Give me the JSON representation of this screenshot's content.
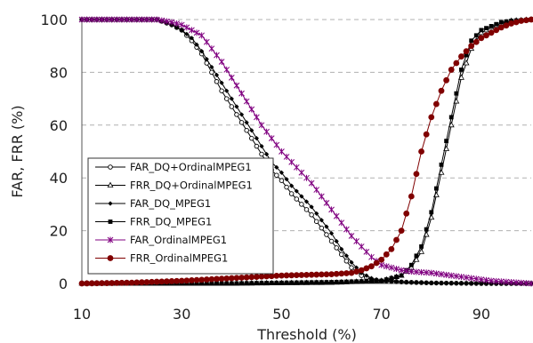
{
  "chart_data": {
    "type": "line",
    "title": "",
    "xlabel": "Threshold (%)",
    "ylabel": "FAR, FRR (%)",
    "xlim": [
      10,
      100
    ],
    "ylim": [
      0,
      100
    ],
    "x_ticks": [
      "10",
      "30",
      "50",
      "70",
      "90"
    ],
    "y_ticks": [
      "0",
      "20",
      "40",
      "60",
      "80",
      "100"
    ],
    "grid": "horizontal dashed",
    "legend_position": "left-center",
    "series": [
      {
        "name": "FAR_DQ+OrdinalMPEG1",
        "color": "#000000",
        "marker": "open-circle",
        "points": [
          [
            10,
            100
          ],
          [
            20,
            100
          ],
          [
            25,
            100
          ],
          [
            28,
            98
          ],
          [
            30,
            96
          ],
          [
            32,
            92
          ],
          [
            34,
            87
          ],
          [
            36,
            80
          ],
          [
            38,
            73
          ],
          [
            40,
            67
          ],
          [
            42,
            61
          ],
          [
            44,
            55
          ],
          [
            46,
            49
          ],
          [
            48,
            43
          ],
          [
            50,
            39
          ],
          [
            52,
            34
          ],
          [
            54,
            30
          ],
          [
            56,
            26
          ],
          [
            58,
            21
          ],
          [
            60,
            16
          ],
          [
            62,
            11
          ],
          [
            64,
            6
          ],
          [
            66,
            3
          ],
          [
            68,
            1.5
          ],
          [
            70,
            1
          ],
          [
            75,
            0.5
          ],
          [
            80,
            0.2
          ],
          [
            90,
            0
          ],
          [
            100,
            0
          ]
        ]
      },
      {
        "name": "FRR_DQ+OrdinalMPEG1",
        "color": "#000000",
        "marker": "open-triangle",
        "points": [
          [
            10,
            0
          ],
          [
            40,
            0
          ],
          [
            60,
            0.3
          ],
          [
            70,
            1
          ],
          [
            74,
            3
          ],
          [
            76,
            6
          ],
          [
            78,
            12
          ],
          [
            80,
            25
          ],
          [
            82,
            42
          ],
          [
            84,
            60
          ],
          [
            86,
            78
          ],
          [
            88,
            89
          ],
          [
            90,
            95
          ],
          [
            92,
            97
          ],
          [
            94,
            98.5
          ],
          [
            96,
            99.5
          ],
          [
            100,
            100
          ]
        ]
      },
      {
        "name": "FAR_DQ_MPEG1",
        "color": "#000000",
        "marker": "diamond",
        "points": [
          [
            10,
            100
          ],
          [
            20,
            100
          ],
          [
            25,
            100
          ],
          [
            28,
            98
          ],
          [
            30,
            96
          ],
          [
            32,
            93
          ],
          [
            34,
            88
          ],
          [
            36,
            82
          ],
          [
            38,
            76
          ],
          [
            40,
            70
          ],
          [
            42,
            64
          ],
          [
            44,
            58
          ],
          [
            46,
            52
          ],
          [
            48,
            46
          ],
          [
            50,
            42
          ],
          [
            52,
            37
          ],
          [
            54,
            33
          ],
          [
            56,
            29
          ],
          [
            58,
            24
          ],
          [
            60,
            19
          ],
          [
            62,
            13
          ],
          [
            64,
            8
          ],
          [
            66,
            4
          ],
          [
            68,
            2
          ],
          [
            70,
            1
          ],
          [
            75,
            0.5
          ],
          [
            80,
            0.2
          ],
          [
            90,
            0
          ],
          [
            100,
            0
          ]
        ]
      },
      {
        "name": "FRR_DQ_MPEG1",
        "color": "#000000",
        "marker": "filled-square",
        "points": [
          [
            10,
            0
          ],
          [
            40,
            0
          ],
          [
            60,
            0.5
          ],
          [
            70,
            1
          ],
          [
            74,
            3
          ],
          [
            76,
            7
          ],
          [
            78,
            14
          ],
          [
            80,
            27
          ],
          [
            82,
            45
          ],
          [
            84,
            63
          ],
          [
            86,
            81
          ],
          [
            88,
            92
          ],
          [
            90,
            96
          ],
          [
            92,
            97.5
          ],
          [
            94,
            99
          ],
          [
            96,
            99.5
          ],
          [
            100,
            100
          ]
        ]
      },
      {
        "name": "FAR_OrdinalMPEG1",
        "color": "#800080",
        "marker": "star",
        "points": [
          [
            10,
            100
          ],
          [
            20,
            100
          ],
          [
            25,
            100
          ],
          [
            28,
            99
          ],
          [
            30,
            98
          ],
          [
            32,
            96
          ],
          [
            34,
            94
          ],
          [
            36,
            89
          ],
          [
            38,
            84
          ],
          [
            40,
            78
          ],
          [
            42,
            72
          ],
          [
            44,
            66
          ],
          [
            46,
            60
          ],
          [
            48,
            55
          ],
          [
            50,
            50
          ],
          [
            52,
            46
          ],
          [
            54,
            42
          ],
          [
            56,
            38
          ],
          [
            58,
            33
          ],
          [
            60,
            28
          ],
          [
            62,
            23
          ],
          [
            64,
            18
          ],
          [
            66,
            14
          ],
          [
            68,
            10
          ],
          [
            70,
            7
          ],
          [
            72,
            6
          ],
          [
            74,
            5
          ],
          [
            76,
            4.5
          ],
          [
            80,
            4
          ],
          [
            84,
            3
          ],
          [
            88,
            2
          ],
          [
            92,
            1
          ],
          [
            96,
            0.5
          ],
          [
            100,
            0
          ]
        ]
      },
      {
        "name": "FRR_OrdinalMPEG1",
        "color": "#800000",
        "marker": "filled-circle",
        "points": [
          [
            10,
            0
          ],
          [
            20,
            0.3
          ],
          [
            30,
            1
          ],
          [
            40,
            2
          ],
          [
            45,
            2.5
          ],
          [
            50,
            3
          ],
          [
            60,
            3.5
          ],
          [
            64,
            4
          ],
          [
            66,
            5
          ],
          [
            68,
            6.5
          ],
          [
            70,
            9
          ],
          [
            72,
            13
          ],
          [
            74,
            20
          ],
          [
            76,
            33
          ],
          [
            78,
            50
          ],
          [
            80,
            63
          ],
          [
            82,
            73
          ],
          [
            84,
            81
          ],
          [
            86,
            86
          ],
          [
            88,
            90
          ],
          [
            90,
            93
          ],
          [
            92,
            95
          ],
          [
            94,
            97
          ],
          [
            96,
            98.5
          ],
          [
            98,
            99.5
          ],
          [
            100,
            100
          ]
        ]
      }
    ]
  }
}
